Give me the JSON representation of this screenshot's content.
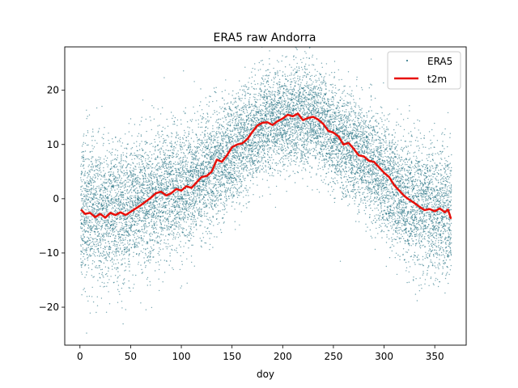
{
  "chart_data": {
    "type": "scatter",
    "title": "ERA5 raw Andorra",
    "xlabel": "doy",
    "ylabel": "",
    "xlim": [
      -15,
      381
    ],
    "ylim": [
      -27,
      28
    ],
    "x_ticks": [
      0,
      50,
      100,
      150,
      200,
      250,
      300,
      350
    ],
    "y_ticks": [
      -20,
      -10,
      0,
      10,
      20
    ],
    "grid": false,
    "legend_position": "upper right",
    "colors": {
      "scatter": "#1b6b7d",
      "line": "#e8100a"
    },
    "series": [
      {
        "name": "ERA5",
        "kind": "scatter",
        "x_range": [
          1,
          366
        ],
        "center": [
          [
            1,
            -2
          ],
          [
            20,
            -3
          ],
          [
            40,
            -2.8
          ],
          [
            60,
            -1
          ],
          [
            80,
            1.2
          ],
          [
            100,
            1.5
          ],
          [
            120,
            4
          ],
          [
            140,
            7
          ],
          [
            160,
            10
          ],
          [
            180,
            13.8
          ],
          [
            200,
            14.5
          ],
          [
            210,
            15.5
          ],
          [
            230,
            15
          ],
          [
            250,
            12
          ],
          [
            270,
            9
          ],
          [
            290,
            6
          ],
          [
            310,
            2
          ],
          [
            330,
            -1.5
          ],
          [
            350,
            -2
          ],
          [
            366,
            -3
          ]
        ],
        "spread_sd": [
          [
            1,
            6.5
          ],
          [
            40,
            6.2
          ],
          [
            100,
            5.8
          ],
          [
            150,
            5
          ],
          [
            200,
            4.6
          ],
          [
            250,
            4.6
          ],
          [
            300,
            5.2
          ],
          [
            366,
            6.2
          ]
        ]
      },
      {
        "name": "t2m",
        "kind": "line",
        "points": [
          [
            1,
            -2.0
          ],
          [
            5,
            -2.8
          ],
          [
            10,
            -2.6
          ],
          [
            15,
            -3.4
          ],
          [
            20,
            -2.8
          ],
          [
            25,
            -3.5
          ],
          [
            30,
            -2.6
          ],
          [
            35,
            -3.0
          ],
          [
            40,
            -2.5
          ],
          [
            45,
            -3.0
          ],
          [
            50,
            -2.4
          ],
          [
            55,
            -1.8
          ],
          [
            60,
            -1.2
          ],
          [
            65,
            -0.5
          ],
          [
            70,
            0.2
          ],
          [
            75,
            1.0
          ],
          [
            80,
            1.3
          ],
          [
            85,
            0.6
          ],
          [
            90,
            1.0
          ],
          [
            95,
            1.8
          ],
          [
            100,
            1.5
          ],
          [
            105,
            2.3
          ],
          [
            110,
            2.0
          ],
          [
            115,
            3.0
          ],
          [
            120,
            4.0
          ],
          [
            125,
            4.2
          ],
          [
            130,
            5.0
          ],
          [
            135,
            7.2
          ],
          [
            140,
            6.8
          ],
          [
            145,
            8.0
          ],
          [
            150,
            9.5
          ],
          [
            155,
            10.0
          ],
          [
            160,
            10.2
          ],
          [
            165,
            11.0
          ],
          [
            170,
            12.3
          ],
          [
            175,
            13.5
          ],
          [
            180,
            14.0
          ],
          [
            185,
            14.1
          ],
          [
            190,
            13.6
          ],
          [
            195,
            14.3
          ],
          [
            200,
            14.8
          ],
          [
            205,
            15.5
          ],
          [
            210,
            15.2
          ],
          [
            215,
            15.7
          ],
          [
            220,
            14.5
          ],
          [
            225,
            14.9
          ],
          [
            230,
            15.1
          ],
          [
            235,
            14.6
          ],
          [
            240,
            13.8
          ],
          [
            245,
            12.5
          ],
          [
            250,
            12.2
          ],
          [
            255,
            11.5
          ],
          [
            260,
            10.0
          ],
          [
            265,
            10.3
          ],
          [
            270,
            9.2
          ],
          [
            275,
            8.0
          ],
          [
            280,
            7.8
          ],
          [
            285,
            7.0
          ],
          [
            290,
            6.8
          ],
          [
            295,
            5.8
          ],
          [
            300,
            4.8
          ],
          [
            305,
            4.0
          ],
          [
            310,
            2.5
          ],
          [
            315,
            1.5
          ],
          [
            320,
            0.5
          ],
          [
            325,
            -0.2
          ],
          [
            330,
            -0.8
          ],
          [
            335,
            -1.5
          ],
          [
            340,
            -2.1
          ],
          [
            345,
            -1.9
          ],
          [
            350,
            -2.3
          ],
          [
            355,
            -1.8
          ],
          [
            360,
            -2.5
          ],
          [
            363,
            -2.0
          ],
          [
            366,
            -3.7
          ]
        ]
      }
    ]
  }
}
